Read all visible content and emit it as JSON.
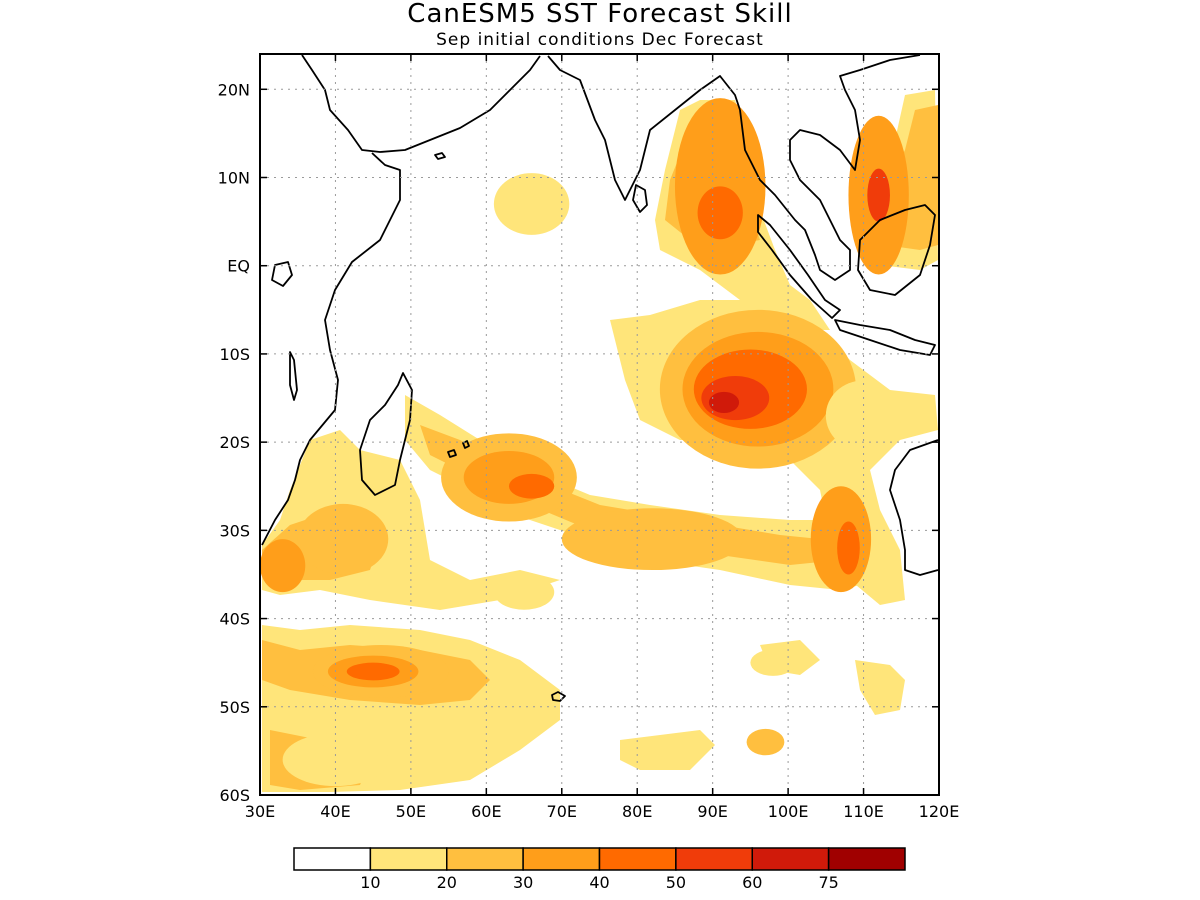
{
  "title": "CanESM5 SST Forecast Skill",
  "subtitle": "Sep initial conditions  Dec Forecast",
  "map": {
    "lon_range": [
      30,
      120
    ],
    "lat_range": [
      -60,
      24
    ],
    "grid": true,
    "x_ticks": [
      {
        "value": 30,
        "label": "30E"
      },
      {
        "value": 40,
        "label": "40E"
      },
      {
        "value": 50,
        "label": "50E"
      },
      {
        "value": 60,
        "label": "60E"
      },
      {
        "value": 70,
        "label": "70E"
      },
      {
        "value": 80,
        "label": "80E"
      },
      {
        "value": 90,
        "label": "90E"
      },
      {
        "value": 100,
        "label": "100E"
      },
      {
        "value": 110,
        "label": "110E"
      },
      {
        "value": 120,
        "label": "120E"
      }
    ],
    "y_ticks": [
      {
        "value": 20,
        "label": "20N"
      },
      {
        "value": 10,
        "label": "10N"
      },
      {
        "value": 0,
        "label": "EQ"
      },
      {
        "value": -10,
        "label": "10S"
      },
      {
        "value": -20,
        "label": "20S"
      },
      {
        "value": -30,
        "label": "30S"
      },
      {
        "value": -40,
        "label": "40S"
      },
      {
        "value": -50,
        "label": "50S"
      },
      {
        "value": -60,
        "label": "60S"
      }
    ]
  },
  "colorbar": {
    "colors": [
      "#ffffff",
      "#ffe57a",
      "#ffbf3f",
      "#ff9e1a",
      "#ff6a00",
      "#f03c0a",
      "#d01a0a",
      "#a00000"
    ],
    "labels": [
      "10",
      "20",
      "30",
      "40",
      "50",
      "60",
      "75"
    ]
  },
  "skill_regions": [
    {
      "lon": 91,
      "lat": 9,
      "rlon": 6,
      "rlat": 10,
      "level": 3
    },
    {
      "lon": 91,
      "lat": 6,
      "rlon": 3,
      "rlat": 3,
      "level": 4
    },
    {
      "lon": 112,
      "lat": 8,
      "rlon": 4,
      "rlat": 9,
      "level": 3
    },
    {
      "lon": 112,
      "lat": 8,
      "rlon": 1.5,
      "rlat": 3,
      "level": 5
    },
    {
      "lon": 66,
      "lat": 7,
      "rlon": 5,
      "rlat": 3.5,
      "level": 1
    },
    {
      "lon": 96,
      "lat": -14,
      "rlon": 13,
      "rlat": 9,
      "level": 2
    },
    {
      "lon": 96,
      "lat": -14,
      "rlon": 10,
      "rlat": 6.5,
      "level": 3
    },
    {
      "lon": 95,
      "lat": -14,
      "rlon": 7.5,
      "rlat": 4.5,
      "level": 4
    },
    {
      "lon": 93,
      "lat": -15,
      "rlon": 4.5,
      "rlat": 2.5,
      "level": 5
    },
    {
      "lon": 91.5,
      "lat": -15.5,
      "rlon": 2,
      "rlat": 1.2,
      "level": 6
    },
    {
      "lon": 110,
      "lat": -17,
      "rlon": 5,
      "rlat": 4,
      "level": 1
    },
    {
      "lon": 63,
      "lat": -24,
      "rlon": 9,
      "rlat": 5,
      "level": 2
    },
    {
      "lon": 63,
      "lat": -24,
      "rlon": 6,
      "rlat": 3,
      "level": 3
    },
    {
      "lon": 66,
      "lat": -25,
      "rlon": 3,
      "rlat": 1.4,
      "level": 4
    },
    {
      "lon": 82,
      "lat": -31,
      "rlon": 12,
      "rlat": 3.5,
      "level": 2
    },
    {
      "lon": 107,
      "lat": -31,
      "rlon": 4,
      "rlat": 6,
      "level": 3
    },
    {
      "lon": 108,
      "lat": -32,
      "rlon": 1.5,
      "rlat": 3,
      "level": 4
    },
    {
      "lon": 41,
      "lat": -31,
      "rlon": 6,
      "rlat": 4,
      "level": 2
    },
    {
      "lon": 33,
      "lat": -34,
      "rlon": 3,
      "rlat": 3,
      "level": 3
    },
    {
      "lon": 46,
      "lat": -46,
      "rlon": 9,
      "rlat": 3,
      "level": 2
    },
    {
      "lon": 45,
      "lat": -46,
      "rlon": 6,
      "rlat": 1.8,
      "level": 3
    },
    {
      "lon": 45,
      "lat": -46,
      "rlon": 3.5,
      "rlat": 1,
      "level": 4
    },
    {
      "lon": 97,
      "lat": -54,
      "rlon": 2.5,
      "rlat": 1.5,
      "level": 2
    },
    {
      "lon": 98,
      "lat": -45,
      "rlon": 3,
      "rlat": 1.5,
      "level": 1
    },
    {
      "lon": 40,
      "lat": -56,
      "rlon": 7,
      "rlat": 3,
      "level": 1
    },
    {
      "lon": 65,
      "lat": -37,
      "rlon": 4,
      "rlat": 2,
      "level": 1
    }
  ]
}
